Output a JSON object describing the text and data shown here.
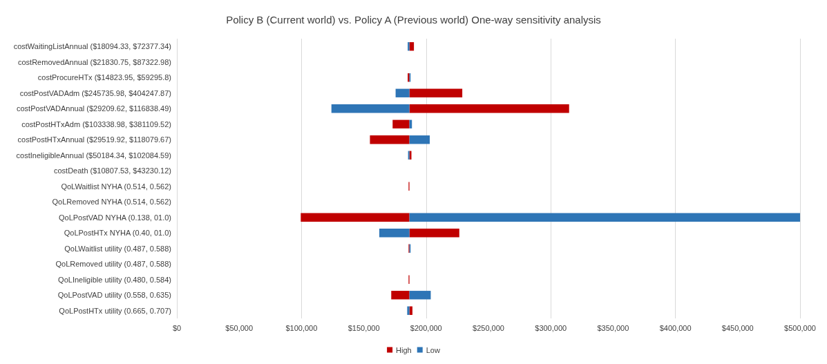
{
  "chart_data": {
    "type": "bar",
    "orientation": "horizontal",
    "title": "Policy B (Current world) vs. Policy A (Previous world) One-way sensitivity analysis",
    "categories": [
      "costWaitingListAnnual ($18094.33, $72377.34)",
      "costRemovedAnnual ($21830.75, $87322.98)",
      "costProcureHTx ($14823.95, $59295.8)",
      "costPostVADAdm ($245735.98, $404247.87)",
      "costPostVADAnnual ($29209.62, $116838.49)",
      "costPostHTxAdm ($103338.98, $381109.52)",
      "costPostHTxAnnual ($29519.92, $118079.67)",
      "costIneligibleAnnual ($50184.34, $102084.59)",
      "costDeath ($10807.53, $43230.12)",
      "QoLWaitlist NYHA (0.514, 0.562)",
      "QoLRemoved NYHA (0.514, 0.562)",
      "QoLPostVAD NYHA (0.138, 01.0)",
      "QoLPostHTx NYHA (0.40, 01.0)",
      "QoLWaitlist utility (0.487, 0.588)",
      "QoLRemoved utility (0.487, 0.588)",
      "QoLIneligible utility (0.480, 0.584)",
      "QoLPostVAD utility (0.558, 0.635)",
      "QoLPostHTx utility (0.665, 0.707)"
    ],
    "series": [
      {
        "name": "High",
        "color": "#c00000",
        "base": [
          186600,
          null,
          185200,
          186600,
          186600,
          173100,
          154900,
          186600,
          null,
          185900,
          null,
          99400,
          186600,
          185900,
          null,
          185900,
          172000,
          186600
        ],
        "values": [
          3600,
          null,
          1400,
          42400,
          128100,
          13500,
          31700,
          1600,
          null,
          700,
          null,
          87200,
          40000,
          700,
          null,
          700,
          14600,
          2400
        ]
      },
      {
        "name": "Low",
        "color": "#2e75b6",
        "base": [
          185200,
          null,
          186600,
          175500,
          124000,
          186600,
          186600,
          185500,
          null,
          null,
          null,
          186600,
          162400,
          186600,
          null,
          null,
          186600,
          184800
        ],
        "values": [
          1400,
          null,
          900,
          11100,
          62600,
          2000,
          16300,
          1100,
          null,
          null,
          null,
          313400,
          24200,
          900,
          null,
          null,
          17100,
          1800
        ]
      }
    ],
    "xlim": [
      0,
      500000
    ],
    "xticks": [
      {
        "value": 0,
        "label": "$0"
      },
      {
        "value": 50000,
        "label": "$50,000"
      },
      {
        "value": 100000,
        "label": "$100,000"
      },
      {
        "value": 150000,
        "label": "$150,000"
      },
      {
        "value": 200000,
        "label": "$200,000"
      },
      {
        "value": 250000,
        "label": "$250,000"
      },
      {
        "value": 300000,
        "label": "$300,000"
      },
      {
        "value": 350000,
        "label": "$350,000"
      },
      {
        "value": 400000,
        "label": "$400,000"
      },
      {
        "value": 450000,
        "label": "$450,000"
      },
      {
        "value": 500000,
        "label": "$500,000"
      }
    ],
    "grid": "x",
    "legend": "bottom"
  }
}
